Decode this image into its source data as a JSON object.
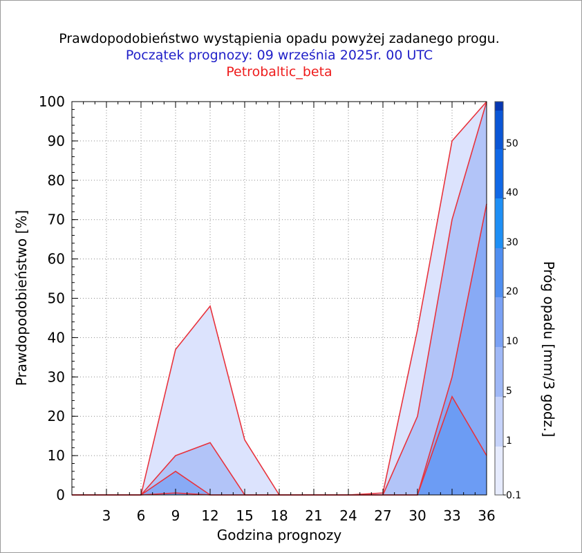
{
  "chart_data": {
    "type": "area",
    "title": "Prawdopodobieństwo wystąpienia opadu powyżej zadanego progu.",
    "subtitle": "Początek prognozy: 09 września 2025r. 00 UTC",
    "station": "Petrobaltic_beta",
    "xlabel": "Godzina prognozy",
    "ylabel": "Prawdopodobieństwo [%]",
    "colorbar_label": "Próg opadu [mm/3 godz.]",
    "xlim": [
      0,
      36
    ],
    "ylim": [
      0,
      100
    ],
    "x_ticks": [
      3,
      6,
      9,
      12,
      15,
      18,
      21,
      24,
      27,
      30,
      33,
      36
    ],
    "y_ticks": [
      0,
      10,
      20,
      30,
      40,
      50,
      60,
      70,
      80,
      90,
      100
    ],
    "x": [
      0,
      3,
      6,
      9,
      12,
      15,
      18,
      21,
      24,
      27,
      30,
      33,
      36
    ],
    "series": [
      {
        "name": "0.1",
        "color": "#dce3fd",
        "values": [
          0,
          0,
          0,
          37,
          48,
          14,
          0,
          0,
          0,
          0.5,
          42,
          90,
          100
        ]
      },
      {
        "name": "1",
        "color": "#b2c4f8",
        "values": [
          0,
          0,
          0,
          10,
          13.3,
          0,
          0,
          0,
          0,
          0,
          20,
          70,
          100
        ]
      },
      {
        "name": "5",
        "color": "#88aaf5",
        "values": [
          0,
          0,
          0,
          6,
          0,
          0,
          0,
          0,
          0,
          0,
          0,
          30,
          74
        ]
      },
      {
        "name": "10",
        "color": "#6c9cf4",
        "values": [
          0,
          0,
          0,
          0.5,
          0,
          0,
          0,
          0,
          0,
          0,
          0,
          25,
          10
        ]
      }
    ],
    "colorbar": {
      "tick_labels": [
        "0.1",
        "1",
        "5",
        "10",
        "20",
        "30",
        "40",
        "50"
      ],
      "colors": [
        "#e6ebfd",
        "#c6d3fa",
        "#9fb8f6",
        "#7aa1f4",
        "#4f8ef0",
        "#1e8ff5",
        "#1068e6",
        "#0a56d6",
        "#0637b2"
      ]
    },
    "grid": true
  }
}
